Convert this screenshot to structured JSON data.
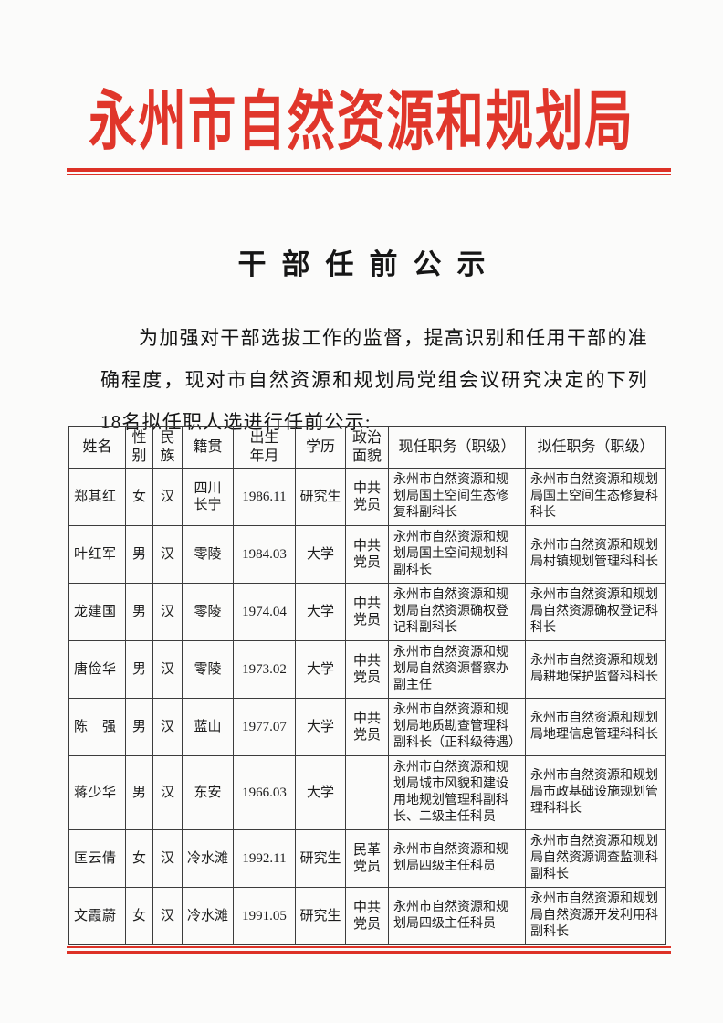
{
  "page": {
    "org_title": "永州市自然资源和规划局",
    "doc_title": "干部任前公示",
    "intro": "为加强对干部选拔工作的监督，提高识别和任用干部的准确程度，现对市自然资源和规划局党组会议研究决定的下列18名拟任职人选进行任前公示:",
    "accent_color": "#dd3126"
  },
  "table": {
    "headers": [
      "姓名",
      "性别",
      "民族",
      "籍贯",
      "出生年月",
      "学历",
      "政治面貌",
      "现任职务（职级）",
      "拟任职务（职级）"
    ],
    "rows": [
      [
        "郑其红",
        "女",
        "汉",
        "四川\n长宁",
        "1986.11",
        "研究生",
        "中共党员",
        "永州市自然资源和规划局国土空间生态修复科副科长",
        "永州市自然资源和规划局国土空间生态修复科科长"
      ],
      [
        "叶红军",
        "男",
        "汉",
        "零陵",
        "1984.03",
        "大学",
        "中共党员",
        "永州市自然资源和规划局国土空间规划科副科长",
        "永州市自然资源和规划局村镇规划管理科科长"
      ],
      [
        "龙建国",
        "男",
        "汉",
        "零陵",
        "1974.04",
        "大学",
        "中共党员",
        "永州市自然资源和规划局自然资源确权登记科副科长",
        "永州市自然资源和规划局自然资源确权登记科科长"
      ],
      [
        "唐俭华",
        "男",
        "汉",
        "零陵",
        "1973.02",
        "大学",
        "中共党员",
        "永州市自然资源和规划局自然资源督察办副主任",
        "永州市自然资源和规划局耕地保护监督科科长"
      ],
      [
        "陈　强",
        "男",
        "汉",
        "蓝山",
        "1977.07",
        "大学",
        "中共党员",
        "永州市自然资源和规划局地质勘查管理科副科长（正科级待遇）",
        "永州市自然资源和规划局地理信息管理科科长"
      ],
      [
        "蒋少华",
        "男",
        "汉",
        "东安",
        "1966.03",
        "大学",
        "",
        "永州市自然资源和规划局城市风貌和建设用地规划管理科副科长、二级主任科员",
        "永州市自然资源和规划局市政基础设施规划管理科科长"
      ],
      [
        "匡云倩",
        "女",
        "汉",
        "冷水滩",
        "1992.11",
        "研究生",
        "民革党员",
        "永州市自然资源和规划局四级主任科员",
        "永州市自然资源和规划局自然资源调查监测科副科长"
      ],
      [
        "文霞蔚",
        "女",
        "汉",
        "冷水滩",
        "1991.05",
        "研究生",
        "中共党员",
        "永州市自然资源和规划局四级主任科员",
        "永州市自然资源和规划局自然资源开发利用科副科长"
      ]
    ]
  }
}
